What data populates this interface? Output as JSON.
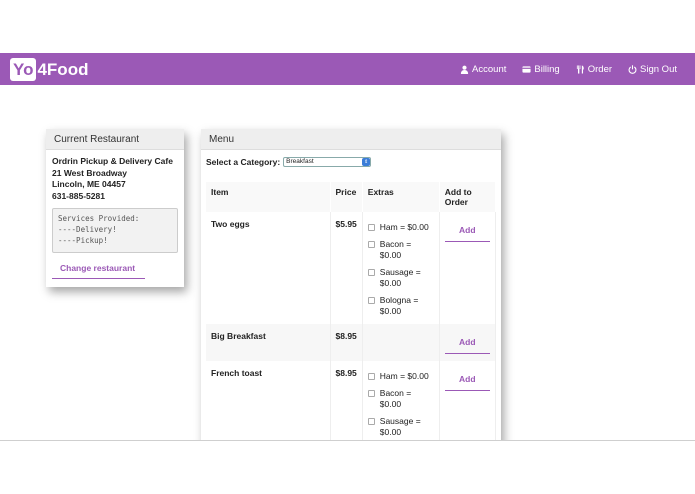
{
  "app": {
    "logo_box": "Yo",
    "logo_rest": "4Food"
  },
  "nav": [
    {
      "label": "Account",
      "icon": "user-icon"
    },
    {
      "label": "Billing",
      "icon": "card-icon"
    },
    {
      "label": "Order",
      "icon": "utensils-icon"
    },
    {
      "label": "Sign Out",
      "icon": "power-icon"
    }
  ],
  "restaurant": {
    "heading": "Current Restaurant",
    "name": "Ordrin Pickup & Delivery Cafe",
    "street": "21 West Broadway",
    "city": "Lincoln, ME 04457",
    "phone": "631-885-5281",
    "services": "Services Provided:\n----Delivery!\n----Pickup!",
    "change_label": "Change restaurant"
  },
  "menu": {
    "heading": "Menu",
    "category_label": "Select a Category:",
    "category_value": "Breakfast",
    "columns": {
      "item": "Item",
      "price": "Price",
      "extras": "Extras",
      "add": "Add to Order"
    },
    "add_label": "Add",
    "items": [
      {
        "name": "Two eggs",
        "price": "$5.95",
        "extras": [
          "Ham = $0.00",
          "Bacon = $0.00",
          "Sausage = $0.00",
          "Bologna = $0.00"
        ]
      },
      {
        "name": "Big Breakfast",
        "price": "$8.95",
        "extras": []
      },
      {
        "name": "French toast",
        "price": "$8.95",
        "extras": [
          "Ham = $0.00",
          "Bacon = $0.00",
          "Sausage = $0.00"
        ]
      }
    ]
  },
  "colors": {
    "brand": "#9b59b6"
  }
}
